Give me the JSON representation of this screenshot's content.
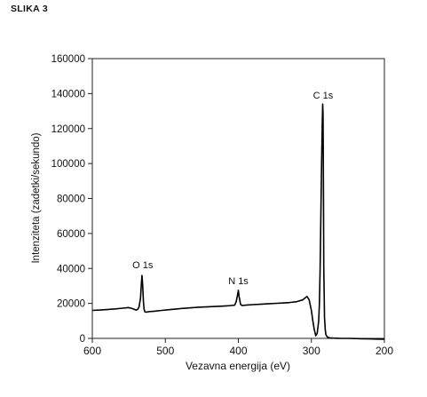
{
  "figure_label": "SLIKA 3",
  "chart_data": {
    "type": "line",
    "title": "",
    "xlabel": "Vezavna energija (eV)",
    "ylabel": "Intenziteta (zadetki/sekundo)",
    "xlim": [
      600,
      200
    ],
    "ylim": [
      0,
      160000
    ],
    "x_reversed": true,
    "x_ticks": [
      600,
      500,
      400,
      300,
      200
    ],
    "y_ticks": [
      0,
      20000,
      40000,
      60000,
      80000,
      100000,
      120000,
      140000,
      160000
    ],
    "grid": false,
    "legend": "none",
    "annotations": [
      {
        "text": "O 1s",
        "x": 531,
        "y": 37000
      },
      {
        "text": "N 1s",
        "x": 400,
        "y": 28000
      },
      {
        "text": "C 1s",
        "x": 284,
        "y": 134000
      }
    ],
    "series": [
      {
        "color": "#000000",
        "x": [
          600,
          590,
          580,
          570,
          560,
          550,
          545,
          540,
          538,
          536,
          534,
          533,
          532,
          531,
          530,
          529,
          528,
          526,
          522,
          515,
          505,
          495,
          485,
          475,
          465,
          455,
          445,
          435,
          425,
          415,
          410,
          405,
          403,
          401,
          400,
          399,
          397,
          395,
          390,
          380,
          370,
          360,
          350,
          340,
          330,
          320,
          312,
          306,
          303,
          300,
          298,
          296,
          294,
          292,
          290,
          289,
          288,
          287,
          286,
          285,
          284.5,
          284,
          283.5,
          283,
          282,
          281,
          280,
          278,
          275,
          270,
          260,
          250,
          240,
          230,
          220,
          210,
          200
        ],
        "y": [
          16000,
          16200,
          16500,
          16800,
          17200,
          17600,
          17000,
          16200,
          16500,
          18000,
          23000,
          30000,
          36000,
          30000,
          21000,
          16500,
          15200,
          15000,
          15300,
          15500,
          16000,
          16400,
          16800,
          17200,
          17500,
          17800,
          18000,
          18200,
          18400,
          18600,
          18800,
          19000,
          21000,
          25000,
          27500,
          24000,
          19500,
          18800,
          19000,
          19300,
          19500,
          19800,
          20000,
          20200,
          20500,
          21000,
          22000,
          24000,
          22000,
          16000,
          10000,
          5000,
          1500,
          3000,
          10000,
          20000,
          40000,
          70000,
          100000,
          125000,
          134000,
          128000,
          90000,
          40000,
          12000,
          5000,
          2000,
          700,
          300,
          150,
          0,
          0,
          -100,
          -200,
          -300,
          -400,
          -500
        ]
      }
    ]
  }
}
